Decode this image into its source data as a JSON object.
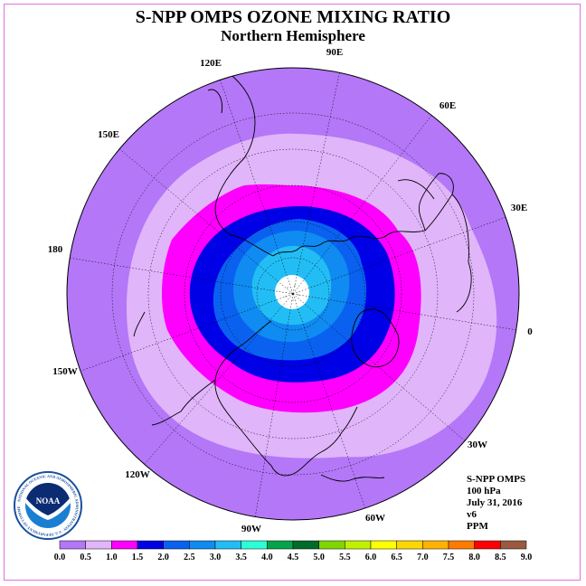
{
  "title": "S-NPP OMPS OZONE MIXING RATIO",
  "subtitle": "Northern Hemisphere",
  "longitude_labels": [
    "90E",
    "60E",
    "30E",
    "0",
    "30W",
    "60W",
    "90W",
    "120W",
    "150W",
    "180",
    "150E",
    "120E"
  ],
  "info": {
    "instrument": "S-NPP OMPS",
    "level": "100 hPa",
    "date": "July 31, 2016",
    "version": "v6",
    "units": "PPM"
  },
  "logo": {
    "name": "NOAA",
    "ring_text": "NATIONAL OCEANIC AND ATMOSPHERIC ADMINISTRATION · U.S. DEPARTMENT OF COMMERCE"
  },
  "colorbar": {
    "ticks": [
      "0.0",
      "0.5",
      "1.0",
      "1.5",
      "2.0",
      "2.5",
      "3.0",
      "3.5",
      "4.0",
      "4.5",
      "5.0",
      "5.5",
      "6.0",
      "6.5",
      "7.0",
      "7.5",
      "8.0",
      "8.5",
      "9.0"
    ],
    "colors": [
      "#b377f7",
      "#e0b5fa",
      "#ff00ff",
      "#0000e6",
      "#0a61f0",
      "#0f8bf2",
      "#22bdf5",
      "#2bffd6",
      "#05a34a",
      "#006b2b",
      "#80d600",
      "#bff200",
      "#ffff00",
      "#ffd700",
      "#ffb300",
      "#ff7b00",
      "#ff0000",
      "#9a5a40"
    ]
  },
  "colors": {
    "band_0_0_5": "#b377f7",
    "band_0_5_1_0": "#e0b5fa",
    "band_1_0_1_5": "#ff00ff",
    "band_1_5_2_0": "#0000e6",
    "band_2_0_2_5": "#0a61f0",
    "band_2_5_3_0": "#0f8bf2",
    "band_3_0_3_5": "#22bdf5"
  }
}
